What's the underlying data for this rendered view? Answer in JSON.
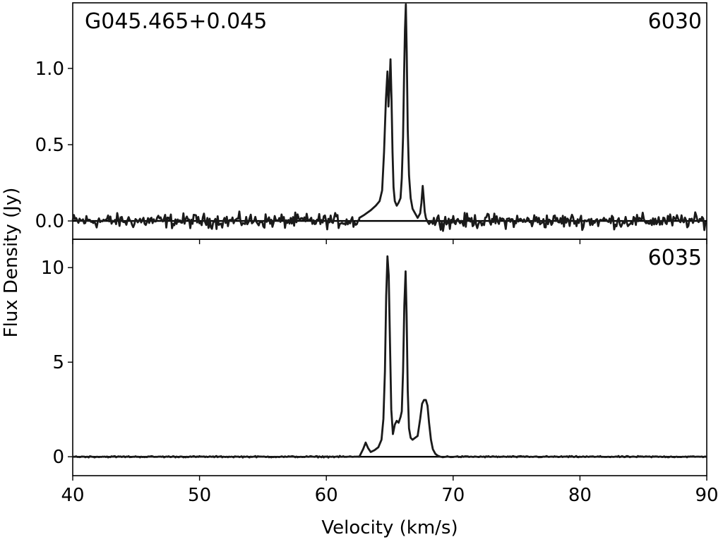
{
  "figure": {
    "source_name": "G045.465+0.045",
    "xlabel": "Velocity (km/s)",
    "ylabel": "Flux Density (Jy)"
  },
  "chart_data": [
    {
      "type": "line",
      "panel_label": "6030",
      "xlim": [
        40,
        90
      ],
      "ylim": [
        -0.12,
        1.43
      ],
      "x_ticks": [
        40,
        50,
        60,
        70,
        80,
        90
      ],
      "y_ticks": [
        0.0,
        0.5,
        1.0
      ],
      "y_tick_labels": [
        "0.0",
        "0.5",
        "1.0"
      ],
      "baseline": {
        "x": [
          40,
          90
        ],
        "y": 0
      },
      "noise_rms": 0.04,
      "noise_range": [
        40,
        90
      ],
      "series": [
        {
          "x": [
            62.6,
            63.0,
            63.5,
            63.9,
            64.2,
            64.4,
            64.55,
            64.7,
            64.82,
            64.9,
            64.98,
            65.06,
            65.14,
            65.22,
            65.3,
            65.4,
            65.55,
            65.7,
            65.85,
            65.95,
            66.05,
            66.13,
            66.2,
            66.27,
            66.34,
            66.42,
            66.52,
            66.65,
            66.8,
            67.0,
            67.2,
            67.4,
            67.5,
            67.6,
            67.68,
            67.76,
            67.85,
            67.95,
            68.1,
            68.3
          ],
          "y": [
            0.02,
            0.04,
            0.07,
            0.1,
            0.13,
            0.2,
            0.45,
            0.8,
            0.98,
            0.75,
            0.88,
            1.06,
            0.8,
            0.45,
            0.22,
            0.13,
            0.1,
            0.12,
            0.15,
            0.28,
            0.55,
            0.95,
            1.25,
            1.42,
            1.1,
            0.6,
            0.3,
            0.15,
            0.08,
            0.05,
            0.02,
            0.05,
            0.12,
            0.23,
            0.15,
            0.06,
            0.02,
            0.0,
            -0.02,
            0.0
          ]
        }
      ]
    },
    {
      "type": "line",
      "panel_label": "6035",
      "xlim": [
        40,
        90
      ],
      "ylim": [
        -1.0,
        11.5
      ],
      "x_ticks": [
        40,
        50,
        60,
        70,
        80,
        90
      ],
      "x_tick_labels": [
        "40",
        "50",
        "60",
        "70",
        "80",
        "90"
      ],
      "y_ticks": [
        0,
        5,
        10
      ],
      "y_tick_labels": [
        "0",
        "5",
        "10"
      ],
      "baseline": {
        "x": [
          40,
          90
        ],
        "y": 0
      },
      "noise_rms": 0.03,
      "noise_range": [
        40,
        90
      ],
      "series": [
        {
          "x": [
            62.6,
            62.9,
            63.1,
            63.3,
            63.5,
            63.8,
            64.1,
            64.35,
            64.5,
            64.62,
            64.72,
            64.82,
            64.92,
            65.02,
            65.12,
            65.25,
            65.4,
            65.55,
            65.7,
            65.85,
            65.95,
            66.05,
            66.15,
            66.25,
            66.33,
            66.42,
            66.52,
            66.65,
            66.8,
            67.0,
            67.2,
            67.4,
            67.55,
            67.7,
            67.85,
            67.98,
            68.1,
            68.25,
            68.4,
            68.6,
            68.8,
            69.0
          ],
          "y": [
            0.0,
            0.4,
            0.75,
            0.45,
            0.25,
            0.35,
            0.5,
            0.9,
            2.0,
            4.5,
            8.5,
            10.6,
            9.6,
            6.0,
            2.5,
            1.2,
            1.7,
            1.9,
            1.8,
            2.1,
            2.4,
            4.5,
            8.0,
            9.8,
            7.5,
            3.5,
            1.5,
            1.0,
            0.9,
            1.0,
            1.1,
            2.0,
            2.8,
            3.0,
            3.0,
            2.7,
            1.8,
            0.9,
            0.4,
            0.15,
            0.05,
            0.0
          ]
        }
      ]
    }
  ]
}
